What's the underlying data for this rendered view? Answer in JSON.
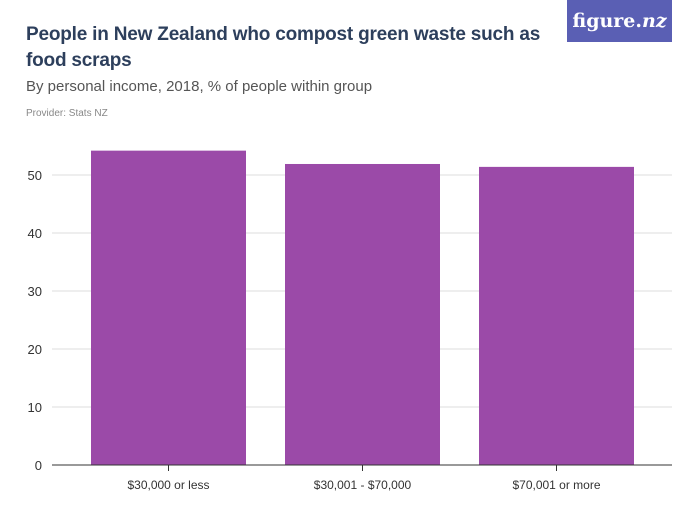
{
  "header": {
    "title": "People in New Zealand who compost green waste such as food scraps",
    "subtitle": "By personal income, 2018, % of people within group",
    "provider": "Provider: Stats NZ"
  },
  "logo": {
    "text_main": "figure.",
    "text_accent": "nz"
  },
  "colors": {
    "bar": "#9b4aa8",
    "grid": "#dddddd",
    "axis": "#333333",
    "tick_text": "#333333"
  },
  "chart_data": {
    "type": "bar",
    "categories": [
      "$30,000 or less",
      "$30,001 - $70,000",
      "$70,001 or more"
    ],
    "values": [
      54.2,
      51.9,
      51.4
    ],
    "ylim": [
      0,
      55
    ],
    "yticks": [
      0,
      10,
      20,
      30,
      40,
      50
    ],
    "grid": true
  }
}
